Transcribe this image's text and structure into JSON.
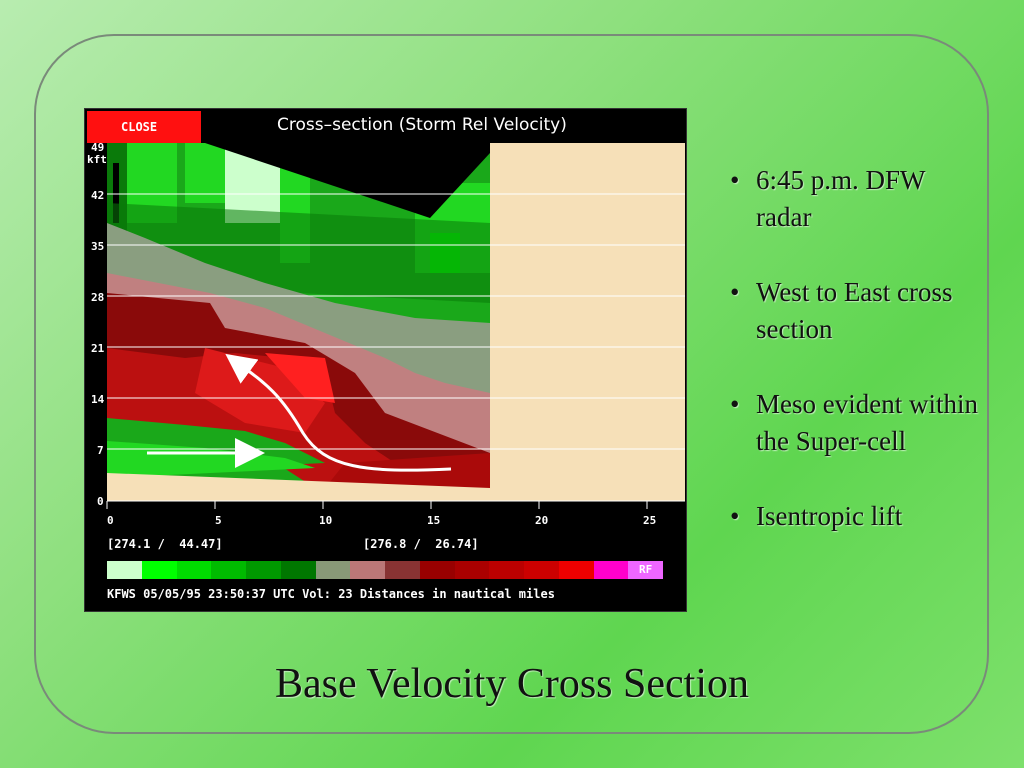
{
  "radar_window": {
    "close_label": "CLOSE",
    "title": "Cross–section (Storm Rel Velocity)",
    "y_axis": {
      "unit": "kft",
      "ticks": [
        "49",
        "42",
        "35",
        "28",
        "21",
        "14",
        "7",
        "0"
      ]
    },
    "x_axis": {
      "ticks": [
        "0",
        "5",
        "10",
        "15",
        "20",
        "25"
      ]
    },
    "endpoint_left": "[274.1 /  44.47]",
    "endpoint_right": "[276.8 /  26.74]",
    "legend_colors": [
      "#ccffcc",
      "#00ff00",
      "#00dd00",
      "#00bb00",
      "#009900",
      "#007700",
      "#889977",
      "#bb7777",
      "#883333",
      "#990000",
      "#aa0000",
      "#bb0000",
      "#cc0000",
      "#ee0000",
      "#ff00cc",
      "#ee66ff"
    ],
    "legend_rf": "RF",
    "status": "KFWS 05/05/95 23:50:37 UTC Vol: 23 Distances in nautical miles"
  },
  "bullets": [
    "6:45 p.m. DFW radar",
    "West to East cross section",
    "Meso evident within the Super-cell",
    "Isentropic lift"
  ],
  "slide_title": "Base Velocity Cross Section",
  "colors": {
    "dark_green": "#0a7a0a",
    "green": "#1aa81a",
    "bright_green": "#22d822",
    "pale_green": "#ccffcc",
    "gray": "#8a9e80",
    "pink": "#c08080",
    "maroon": "#8a0a0a",
    "red": "#bb1010",
    "tan": "#f6e0b8"
  }
}
